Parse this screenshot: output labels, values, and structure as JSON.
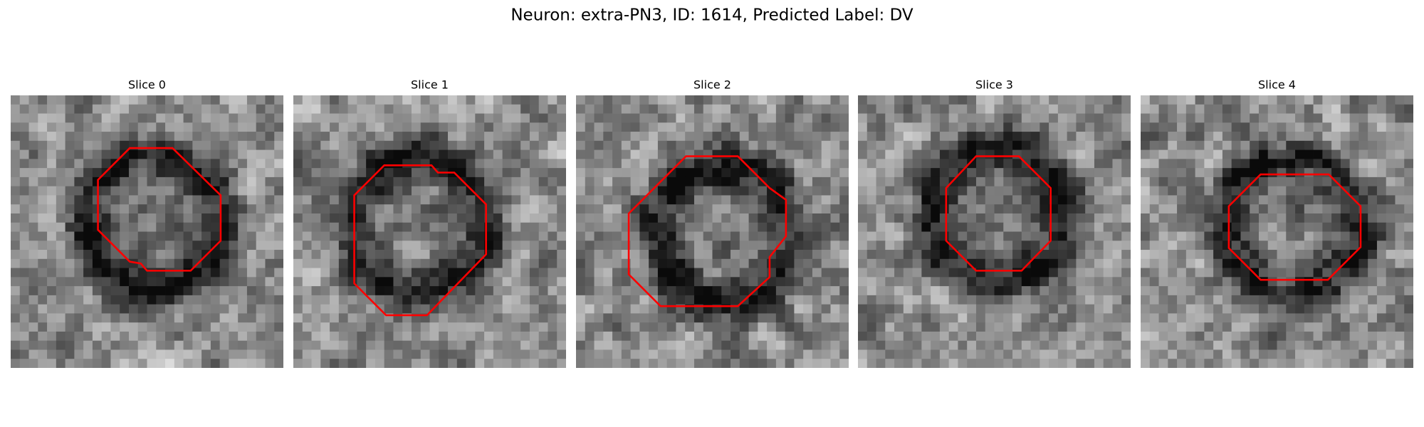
{
  "figure": {
    "title": "Neuron: extra-PN3, ID: 1614, Predicted Label: DV",
    "panels": [
      {
        "title": "Slice 0"
      },
      {
        "title": "Slice 1"
      },
      {
        "title": "Slice 2"
      },
      {
        "title": "Slice 3"
      },
      {
        "title": "Slice 4"
      }
    ]
  }
}
